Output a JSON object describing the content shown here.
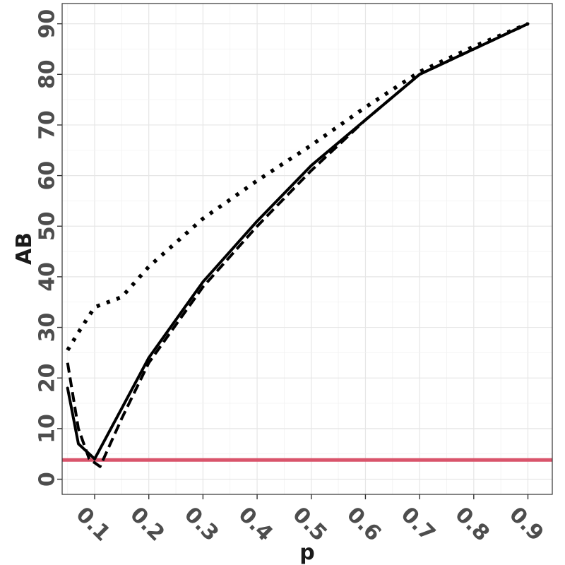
{
  "chart_data": {
    "type": "line",
    "title": "",
    "xlabel": "p",
    "ylabel": "AB",
    "xlim": [
      0.04,
      0.945
    ],
    "ylim": [
      -3,
      94
    ],
    "x_ticks": [
      0.1,
      0.2,
      0.3,
      0.4,
      0.5,
      0.6,
      0.7,
      0.8,
      0.9
    ],
    "x_tick_labels": [
      "0.1",
      "0.2",
      "0.3",
      "0.4",
      "0.5",
      "0.6",
      "0.7",
      "0.8",
      "0.9"
    ],
    "y_ticks": [
      0,
      10,
      20,
      30,
      40,
      50,
      60,
      70,
      80,
      90
    ],
    "y_tick_labels": [
      "0",
      "10",
      "20",
      "30",
      "40",
      "50",
      "60",
      "70",
      "80",
      "90"
    ],
    "grid": true,
    "reference_line": {
      "y": 3.8,
      "color": "#d9546b"
    },
    "series": [
      {
        "style": "solid",
        "color": "#000000",
        "x": [
          0.05,
          0.07,
          0.1,
          0.15,
          0.2,
          0.3,
          0.4,
          0.5,
          0.6,
          0.7,
          0.8,
          0.9
        ],
        "y": [
          18,
          7,
          4,
          14,
          24,
          39,
          51,
          62,
          71,
          80,
          85,
          90
        ]
      },
      {
        "style": "dashed",
        "color": "#000000",
        "x": [
          0.05,
          0.07,
          0.09,
          0.11,
          0.15,
          0.2,
          0.3,
          0.4,
          0.5,
          0.6,
          0.7,
          0.8,
          0.9
        ],
        "y": [
          23,
          10,
          4,
          2.5,
          12,
          23,
          38,
          50,
          61,
          71,
          80,
          85,
          90
        ]
      },
      {
        "style": "dotted",
        "color": "#000000",
        "x": [
          0.05,
          0.07,
          0.1,
          0.15,
          0.2,
          0.3,
          0.4,
          0.5,
          0.6,
          0.7,
          0.8,
          0.9
        ],
        "y": [
          25.5,
          29,
          34,
          36,
          42,
          51.5,
          59,
          66,
          73.5,
          80.5,
          85.5,
          90
        ]
      }
    ]
  }
}
